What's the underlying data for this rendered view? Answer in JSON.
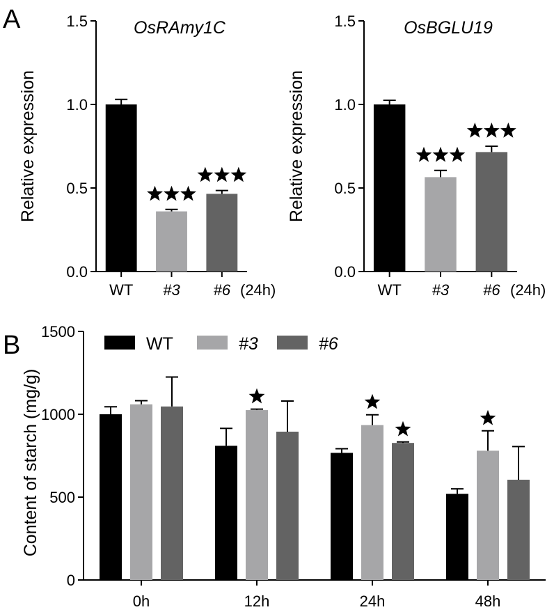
{
  "panel_labels": {
    "a": "A",
    "b": "B"
  },
  "legend_x_suffix": "(24h)",
  "chart_data": [
    {
      "type": "bar",
      "panel": "A",
      "title": "OsRAmy1C",
      "ylabel": "Relative expression",
      "ylim": [
        0,
        1.5
      ],
      "yticks": [
        "0.0",
        "0.5",
        "1.0",
        "1.5"
      ],
      "categories": [
        "WT",
        "#3",
        "#6"
      ],
      "values": [
        1.0,
        0.36,
        0.465
      ],
      "errors": [
        0.03,
        0.012,
        0.02
      ],
      "significance": [
        "",
        "***",
        "***"
      ],
      "colors": [
        "#000000",
        "#a6a6a8",
        "#636363"
      ]
    },
    {
      "type": "bar",
      "panel": "A",
      "title": "OsBGLU19",
      "ylabel": "Relative expression",
      "ylim": [
        0,
        1.5
      ],
      "yticks": [
        "0.0",
        "0.5",
        "1.0",
        "1.5"
      ],
      "categories": [
        "WT",
        "#3",
        "#6"
      ],
      "values": [
        1.0,
        0.565,
        0.715
      ],
      "errors": [
        0.025,
        0.04,
        0.035
      ],
      "significance": [
        "",
        "***",
        "***"
      ],
      "colors": [
        "#000000",
        "#a6a6a8",
        "#636363"
      ]
    },
    {
      "type": "bar",
      "panel": "B",
      "ylabel": "Content of starch (mg/g)",
      "ylim": [
        0,
        1500
      ],
      "yticks": [
        "0",
        "500",
        "1000",
        "1500"
      ],
      "categories": [
        "0h",
        "12h",
        "24h",
        "48h"
      ],
      "legend_position": "top-left",
      "series": [
        {
          "name": "WT",
          "color": "#000000",
          "values": [
            1000,
            810,
            767,
            520
          ],
          "errors": [
            45,
            105,
            25,
            30
          ],
          "significance": [
            "",
            "",
            "",
            ""
          ]
        },
        {
          "name": "#3",
          "color": "#a6a6a8",
          "values": [
            1060,
            1025,
            935,
            780
          ],
          "errors": [
            22,
            6,
            62,
            120
          ],
          "significance": [
            "",
            "*",
            "*",
            "*"
          ]
        },
        {
          "name": "#6",
          "color": "#636363",
          "values": [
            1047,
            895,
            827,
            605
          ],
          "errors": [
            178,
            185,
            6,
            200
          ],
          "significance": [
            "",
            "",
            "*",
            ""
          ]
        }
      ]
    }
  ]
}
